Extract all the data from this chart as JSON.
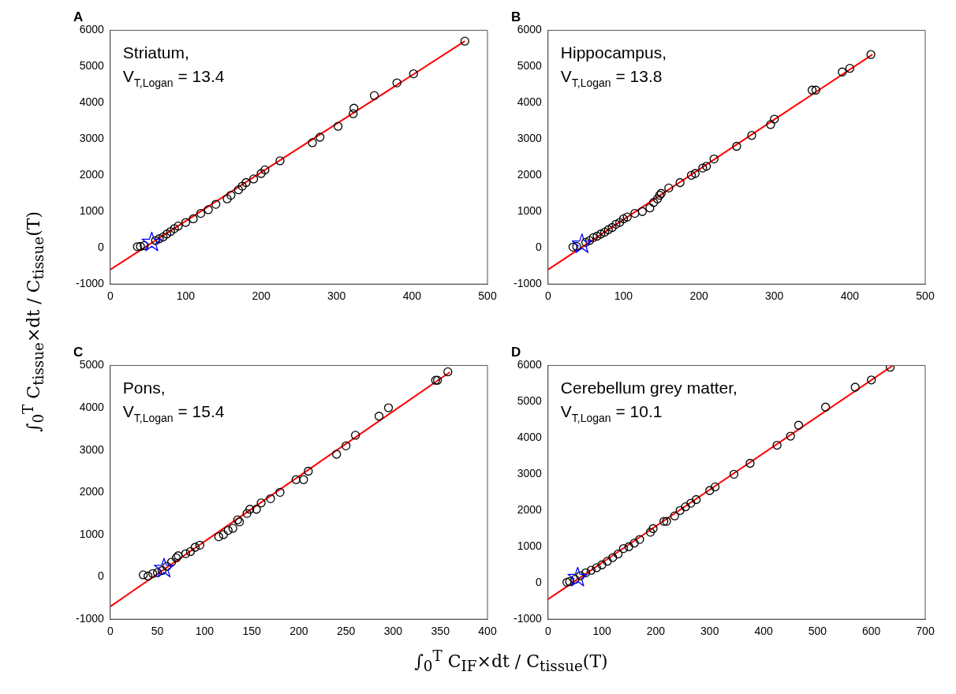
{
  "chart_data": [
    {
      "type": "scatter",
      "title": "A",
      "ylabel": "∫$_{0}$$^{T}$ C$_{tissue}$×dt / C$_{tissue}$(T)",
      "xlim": [
        0,
        500
      ],
      "xticks": [
        0,
        100,
        200,
        300,
        400,
        500
      ],
      "ylim": [
        -1000,
        6000
      ],
      "yticks": [
        -1000,
        0,
        1000,
        2000,
        3000,
        4000,
        5000,
        6000
      ],
      "annotations": [
        "Striatum,",
        "V$_{T,Logan}$ = 13.4"
      ],
      "series": [
        {
          "type": "scatter",
          "color": "#000000",
          "marker": "circle",
          "x": [
            36,
            40,
            45,
            60,
            65,
            70,
            75,
            80,
            85,
            90,
            100,
            110,
            120,
            130,
            140,
            155,
            160,
            170,
            175,
            180,
            190,
            200,
            205,
            225,
            268,
            278,
            302,
            322,
            323,
            350,
            380,
            402,
            470
          ],
          "values": [
            30,
            40,
            60,
            200,
            250,
            300,
            380,
            450,
            530,
            600,
            700,
            800,
            950,
            1050,
            1200,
            1350,
            1450,
            1600,
            1700,
            1800,
            1900,
            2050,
            2150,
            2400,
            2900,
            3050,
            3350,
            3700,
            3850,
            4200,
            4550,
            4800,
            5700
          ]
        },
        {
          "type": "line",
          "color": "#ff0000",
          "marker": "none",
          "x": [
            0,
            470
          ],
          "values": [
            -600,
            5700
          ]
        },
        {
          "type": "scatter",
          "color": "#0000ff",
          "marker": "star",
          "x": [
            55
          ],
          "values": [
            150
          ]
        }
      ]
    },
    {
      "type": "scatter",
      "title": "B",
      "xlim": [
        0,
        500
      ],
      "xticks": [
        0,
        100,
        200,
        300,
        400,
        500
      ],
      "ylim": [
        -1000,
        6000
      ],
      "yticks": [
        -1000,
        0,
        1000,
        2000,
        3000,
        4000,
        5000,
        6000
      ],
      "annotations": [
        "Hippocampus,",
        "V$_{T,Logan}$ = 13.8"
      ],
      "series": [
        {
          "type": "scatter",
          "color": "#000000",
          "marker": "circle",
          "x": [
            33,
            38,
            50,
            55,
            60,
            65,
            70,
            75,
            80,
            85,
            90,
            95,
            100,
            105,
            115,
            125,
            135,
            140,
            145,
            148,
            150,
            160,
            175,
            190,
            195,
            205,
            210,
            220,
            250,
            270,
            295,
            300,
            350,
            355,
            390,
            400,
            428
          ],
          "values": [
            20,
            40,
            150,
            200,
            280,
            320,
            380,
            430,
            500,
            560,
            650,
            700,
            800,
            850,
            950,
            1000,
            1100,
            1250,
            1350,
            1450,
            1500,
            1650,
            1800,
            2000,
            2050,
            2200,
            2250,
            2450,
            2800,
            3100,
            3400,
            3550,
            4350,
            4350,
            4850,
            4950,
            5330
          ]
        },
        {
          "type": "line",
          "color": "#ff0000",
          "marker": "none",
          "x": [
            0,
            430
          ],
          "values": [
            -600,
            5330
          ]
        },
        {
          "type": "scatter",
          "color": "#0000ff",
          "marker": "star",
          "x": [
            45
          ],
          "values": [
            100
          ]
        }
      ]
    },
    {
      "type": "scatter",
      "title": "C",
      "xlabel": "∫$_{0}$$^{T}$ C$_{IF}$×dt / C$_{tissue}$(T)",
      "xlim": [
        0,
        400
      ],
      "xticks": [
        0,
        50,
        100,
        150,
        200,
        250,
        300,
        350,
        400
      ],
      "ylim": [
        -1000,
        5000
      ],
      "yticks": [
        -1000,
        0,
        1000,
        2000,
        3000,
        4000,
        5000
      ],
      "annotations": [
        "Pons,",
        "V$_{T,Logan}$ = 15.4"
      ],
      "series": [
        {
          "type": "scatter",
          "color": "#000000",
          "marker": "circle",
          "x": [
            35,
            40,
            45,
            50,
            55,
            60,
            65,
            70,
            72,
            80,
            85,
            90,
            95,
            115,
            120,
            125,
            130,
            135,
            137,
            145,
            148,
            155,
            160,
            170,
            180,
            197,
            205,
            210,
            240,
            250,
            260,
            285,
            295,
            345,
            347,
            358
          ],
          "values": [
            50,
            20,
            80,
            100,
            150,
            250,
            350,
            450,
            500,
            550,
            600,
            700,
            750,
            950,
            1000,
            1100,
            1150,
            1350,
            1300,
            1500,
            1600,
            1600,
            1750,
            1850,
            2000,
            2300,
            2300,
            2500,
            2900,
            3100,
            3350,
            3800,
            4000,
            4650,
            4650,
            4850
          ]
        },
        {
          "type": "line",
          "color": "#ff0000",
          "marker": "none",
          "x": [
            0,
            360
          ],
          "values": [
            -700,
            4840
          ]
        },
        {
          "type": "scatter",
          "color": "#0000ff",
          "marker": "star",
          "x": [
            57
          ],
          "values": [
            200
          ]
        }
      ]
    },
    {
      "type": "scatter",
      "title": "D",
      "xlim": [
        0,
        700
      ],
      "xticks": [
        0,
        100,
        200,
        300,
        400,
        500,
        600,
        700
      ],
      "ylim": [
        -1000,
        6000
      ],
      "yticks": [
        -1000,
        0,
        1000,
        2000,
        3000,
        4000,
        5000,
        6000
      ],
      "annotations": [
        "Cerebellum grey matter,",
        "V$_{T,Logan}$ = 10.1"
      ],
      "series": [
        {
          "type": "scatter",
          "color": "#000000",
          "marker": "circle",
          "x": [
            35,
            40,
            50,
            60,
            70,
            80,
            90,
            100,
            110,
            120,
            130,
            140,
            150,
            160,
            170,
            190,
            195,
            215,
            220,
            235,
            245,
            255,
            265,
            275,
            300,
            310,
            345,
            375,
            425,
            450,
            465,
            515,
            570,
            600,
            635
          ],
          "values": [
            20,
            40,
            100,
            200,
            280,
            350,
            420,
            500,
            600,
            700,
            800,
            950,
            1000,
            1100,
            1200,
            1400,
            1500,
            1700,
            1700,
            1850,
            2000,
            2100,
            2200,
            2300,
            2550,
            2650,
            3000,
            3300,
            3800,
            4050,
            4350,
            4850,
            5400,
            5600,
            5950
          ]
        },
        {
          "type": "line",
          "color": "#ff0000",
          "marker": "none",
          "x": [
            0,
            640
          ],
          "values": [
            -450,
            6000
          ]
        },
        {
          "type": "scatter",
          "color": "#0000ff",
          "marker": "star",
          "x": [
            55
          ],
          "values": [
            150
          ]
        }
      ]
    }
  ]
}
